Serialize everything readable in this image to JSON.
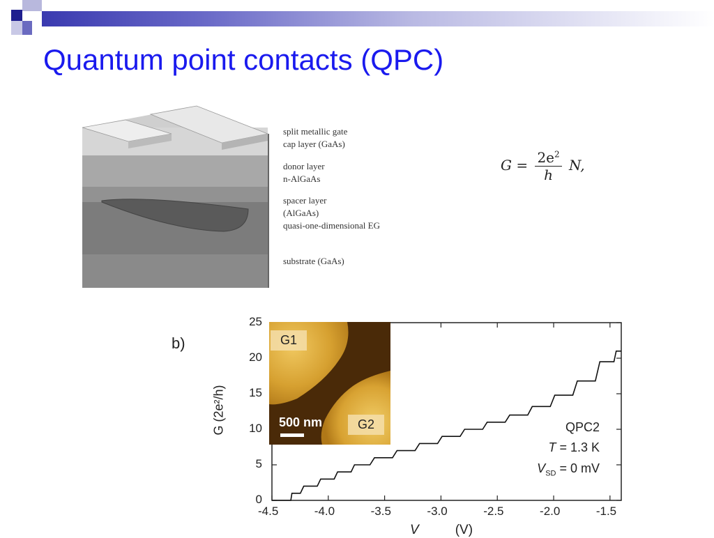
{
  "slide": {
    "title": "Quantum point contacts (QPC)"
  },
  "device_diagram": {
    "labels": [
      "split metallic gate",
      "cap layer (GaAs)",
      "donor layer",
      "n-AlGaAs",
      "spacer layer",
      "(AlGaAs)",
      "quasi-one-dimensional EG",
      "substrate (GaAs)"
    ]
  },
  "formula": {
    "lhs": "G =",
    "numerator": "2e",
    "numerator_sup": "2",
    "denominator": "h",
    "rhs": "N,"
  },
  "figure": {
    "panel_label": "b)",
    "ylabel": "G (2e²/h)",
    "xlabel": "V",
    "xlabel_suffix": "(V)",
    "inset": {
      "gate1": "G1",
      "gate2": "G2",
      "scalebar": "500 nm"
    },
    "annotation": {
      "line1": "QPC2",
      "line2_var": "T",
      "line2_rest": " = 1.3 K",
      "line3_var": "V",
      "line3_sub": "SD",
      "line3_rest": " = 0 mV"
    }
  },
  "chart_data": {
    "type": "line",
    "title": "",
    "xlabel": "V (V)",
    "ylabel": "G (2e²/h)",
    "xlim": [
      -4.5,
      -1.4
    ],
    "ylim": [
      0,
      25
    ],
    "xticks": [
      "-4.5",
      "-4.0",
      "-3.5",
      "-3.0",
      "-2.5",
      "-2.0",
      "-1.5"
    ],
    "yticks": [
      "0",
      "5",
      "10",
      "15",
      "20",
      "25"
    ],
    "series": [
      {
        "x": [
          -4.5,
          -4.35,
          -4.3,
          -4.15,
          -4.0,
          -3.85,
          -3.7,
          -3.5,
          -3.3,
          -3.1,
          -2.9,
          -2.7,
          -2.5,
          -2.3,
          -2.1,
          -1.9,
          -1.7,
          -1.5,
          -1.4
        ],
        "y": [
          0,
          0,
          1,
          2,
          3,
          4,
          5,
          6,
          7,
          8,
          9,
          10,
          11,
          12,
          13.2,
          14.8,
          16.8,
          19.5,
          21
        ]
      }
    ]
  }
}
